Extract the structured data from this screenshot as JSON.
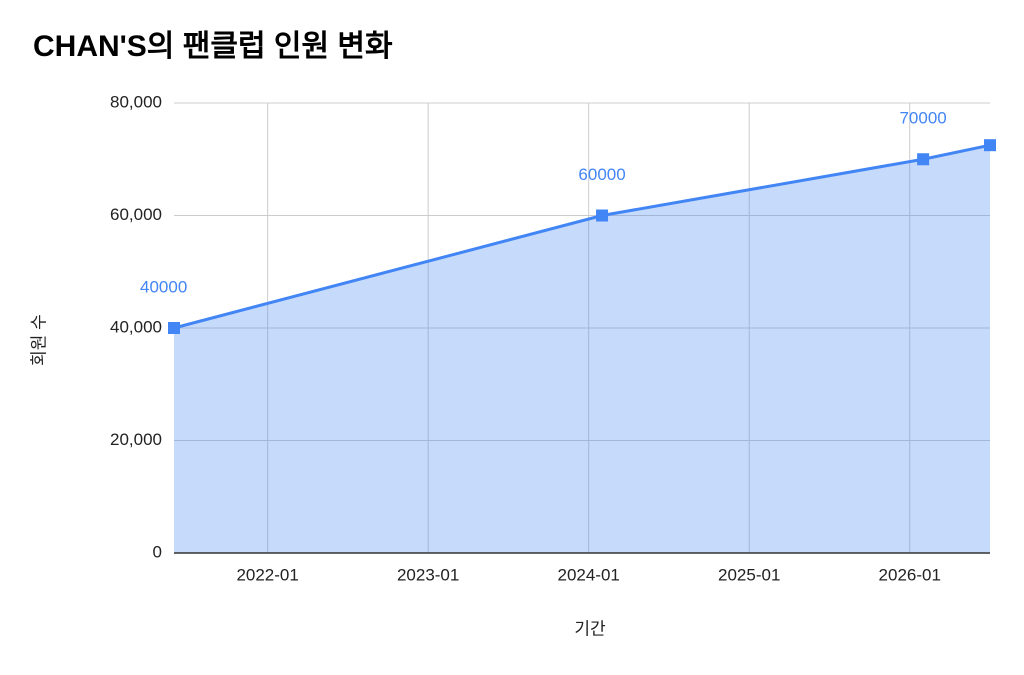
{
  "chart_data": {
    "type": "area",
    "title": "CHAN'S의 팬클럽 인원 변화",
    "x_label": "기간",
    "y_label": "회원 수",
    "x": [
      "2021-06",
      "2024-02",
      "2026-02",
      "2026-07"
    ],
    "series": [
      {
        "name": "회원 수",
        "color": "#4285f4",
        "values": [
          40000,
          60000,
          70000,
          72500
        ]
      }
    ],
    "xlim": [
      "2021-06",
      "2026-07"
    ],
    "xticks": [
      "2022-01",
      "2023-01",
      "2024-01",
      "2025-01",
      "2026-01"
    ],
    "ylim": [
      0,
      80000
    ],
    "yticks": [
      0,
      {
        "value": 20000,
        "label": "20,000"
      },
      {
        "value": 40000,
        "label": "40,000"
      },
      {
        "value": 60000,
        "label": "60,000"
      },
      {
        "value": 80000,
        "label": "80,000"
      }
    ],
    "grid": true
  }
}
